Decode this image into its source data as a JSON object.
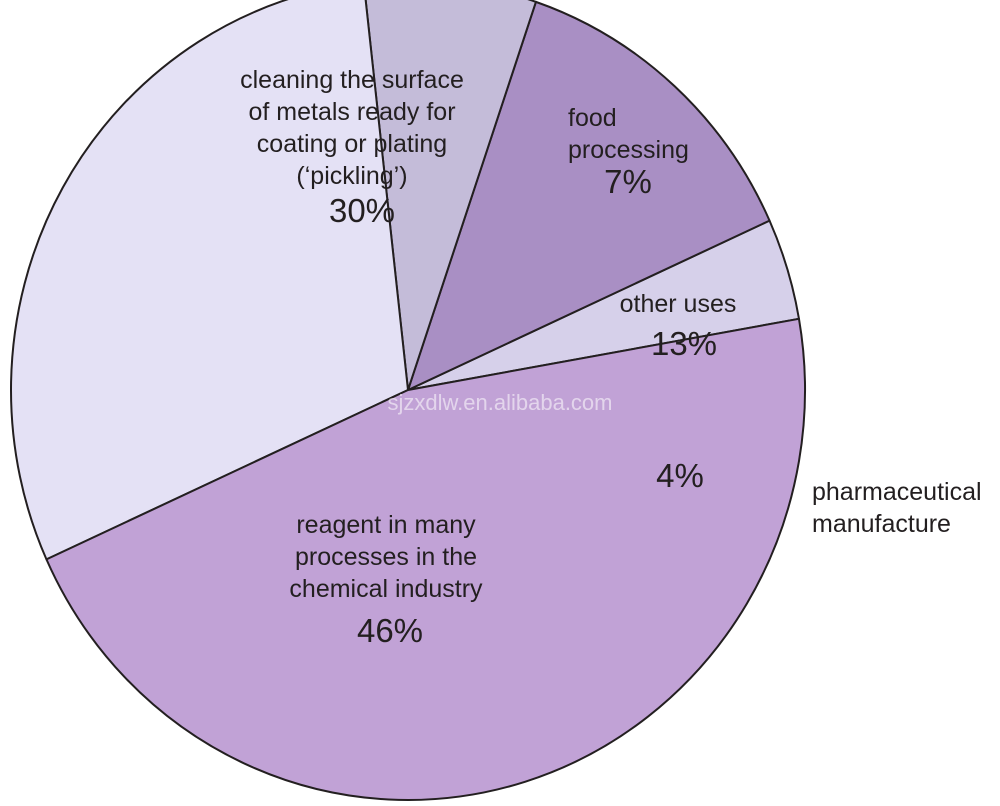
{
  "chart_data": {
    "type": "pie",
    "title": "",
    "start_angle_deg": -10,
    "direction": "counterclockwise",
    "slices": [
      {
        "label": [
          "pharmaceutical",
          "manufacture"
        ],
        "value": 4,
        "display": "4%",
        "color": "#d6d0ea"
      },
      {
        "label": [
          "other uses"
        ],
        "value": 13,
        "display": "13%",
        "color": "#a98fc4"
      },
      {
        "label": [
          "food",
          "processing"
        ],
        "value": 7,
        "display": "7%",
        "color": "#c4bcd9"
      },
      {
        "label": [
          "cleaning the surface",
          "of metals ready for",
          "coating or plating",
          "(‘pickling’)"
        ],
        "value": 30,
        "display": "30%",
        "color": "#e4e1f5"
      },
      {
        "label": [
          "reagent in many",
          "processes in the",
          "chemical industry"
        ],
        "value": 46,
        "display": "46%",
        "color": "#c1a2d6"
      }
    ]
  },
  "watermark": "sjzxdlw.en.alibaba.com"
}
